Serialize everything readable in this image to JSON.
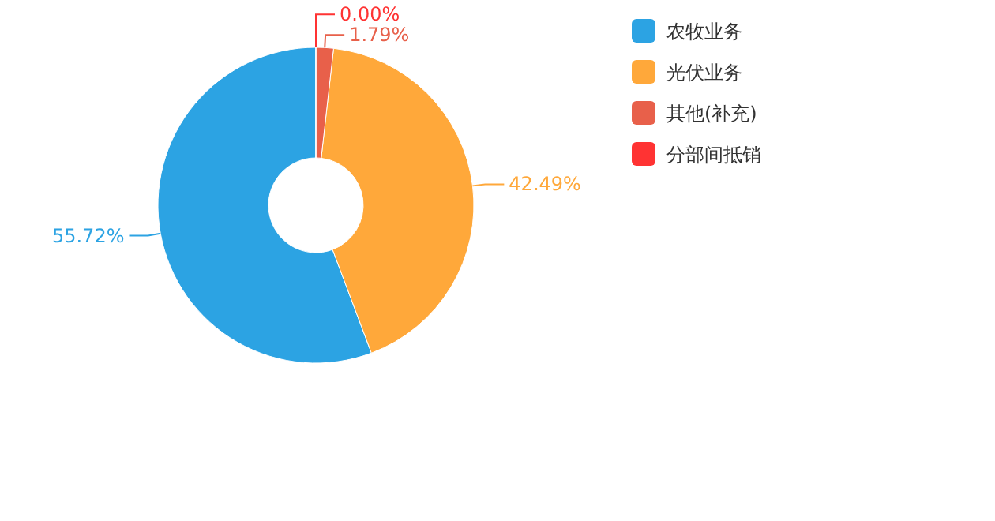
{
  "chart_data": {
    "type": "donut",
    "categories": [
      "农牧业务",
      "光伏业务",
      "其他(补充)",
      "分部间抵销"
    ],
    "values": [
      55.72,
      42.49,
      1.79,
      0.0
    ],
    "value_labels": [
      "55.72%",
      "42.49%",
      "1.79%",
      "0.00%"
    ],
    "colors": [
      "#2ca3e3",
      "#ffa83a",
      "#e8604a",
      "#ff3333"
    ],
    "legend": "top right"
  }
}
